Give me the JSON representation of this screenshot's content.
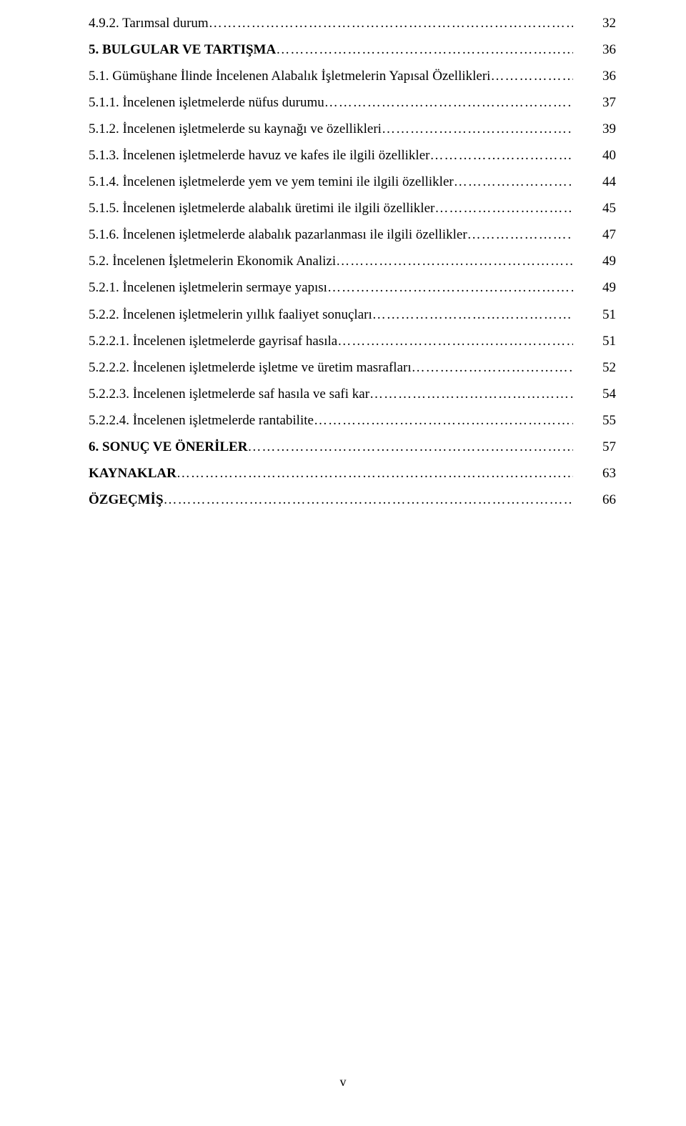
{
  "entries": [
    {
      "label": "4.9.2. Tarımsal durum",
      "page": "32",
      "bold": false
    },
    {
      "label": "5. BULGULAR VE TARTIŞMA",
      "page": "36",
      "bold": true
    },
    {
      "label": "5.1. Gümüşhane İlinde İncelenen Alabalık İşletmelerin Yapısal Özellikleri",
      "page": "36",
      "bold": false
    },
    {
      "label": "5.1.1. İncelenen işletmelerde nüfus durumu",
      "page": "37",
      "bold": false
    },
    {
      "label": "5.1.2. İncelenen işletmelerde su kaynağı ve özellikleri",
      "page": "39",
      "bold": false
    },
    {
      "label": "5.1.3. İncelenen işletmelerde havuz ve kafes ile ilgili özellikler",
      "page": "40",
      "bold": false
    },
    {
      "label": "5.1.4. İncelenen işletmelerde yem ve yem temini ile ilgili özellikler",
      "page": "44",
      "bold": false
    },
    {
      "label": "5.1.5. İncelenen işletmelerde alabalık üretimi ile ilgili özellikler",
      "page": "45",
      "bold": false
    },
    {
      "label": "5.1.6. İncelenen işletmelerde alabalık pazarlanması ile ilgili özellikler",
      "page": "47",
      "bold": false
    },
    {
      "label": "5.2. İncelenen İşletmelerin Ekonomik Analizi",
      "page": "49",
      "bold": false
    },
    {
      "label": "5.2.1. İncelenen işletmelerin sermaye yapısı",
      "page": "49",
      "bold": false
    },
    {
      "label": "5.2.2. İncelenen işletmelerin yıllık faaliyet sonuçları",
      "page": "51",
      "bold": false
    },
    {
      "label": "5.2.2.1. İncelenen işletmelerde gayrisaf hasıla",
      "page": "51",
      "bold": false
    },
    {
      "label": "5.2.2.2. İncelenen işletmelerde işletme ve üretim masrafları",
      "page": "52",
      "bold": false
    },
    {
      "label": "5.2.2.3. İncelenen işletmelerde saf hasıla ve safi kar",
      "page": "54",
      "bold": false
    },
    {
      "label": "5.2.2.4. İncelenen işletmelerde rantabilite",
      "page": "55",
      "bold": false
    },
    {
      "label": "6. SONUÇ VE ÖNERİLER",
      "page": "57",
      "bold": true
    },
    {
      "label": "KAYNAKLAR",
      "page": "63",
      "bold": true
    },
    {
      "label": "ÖZGEÇMİŞ",
      "page": "66",
      "bold": true
    }
  ],
  "page_number": "v"
}
